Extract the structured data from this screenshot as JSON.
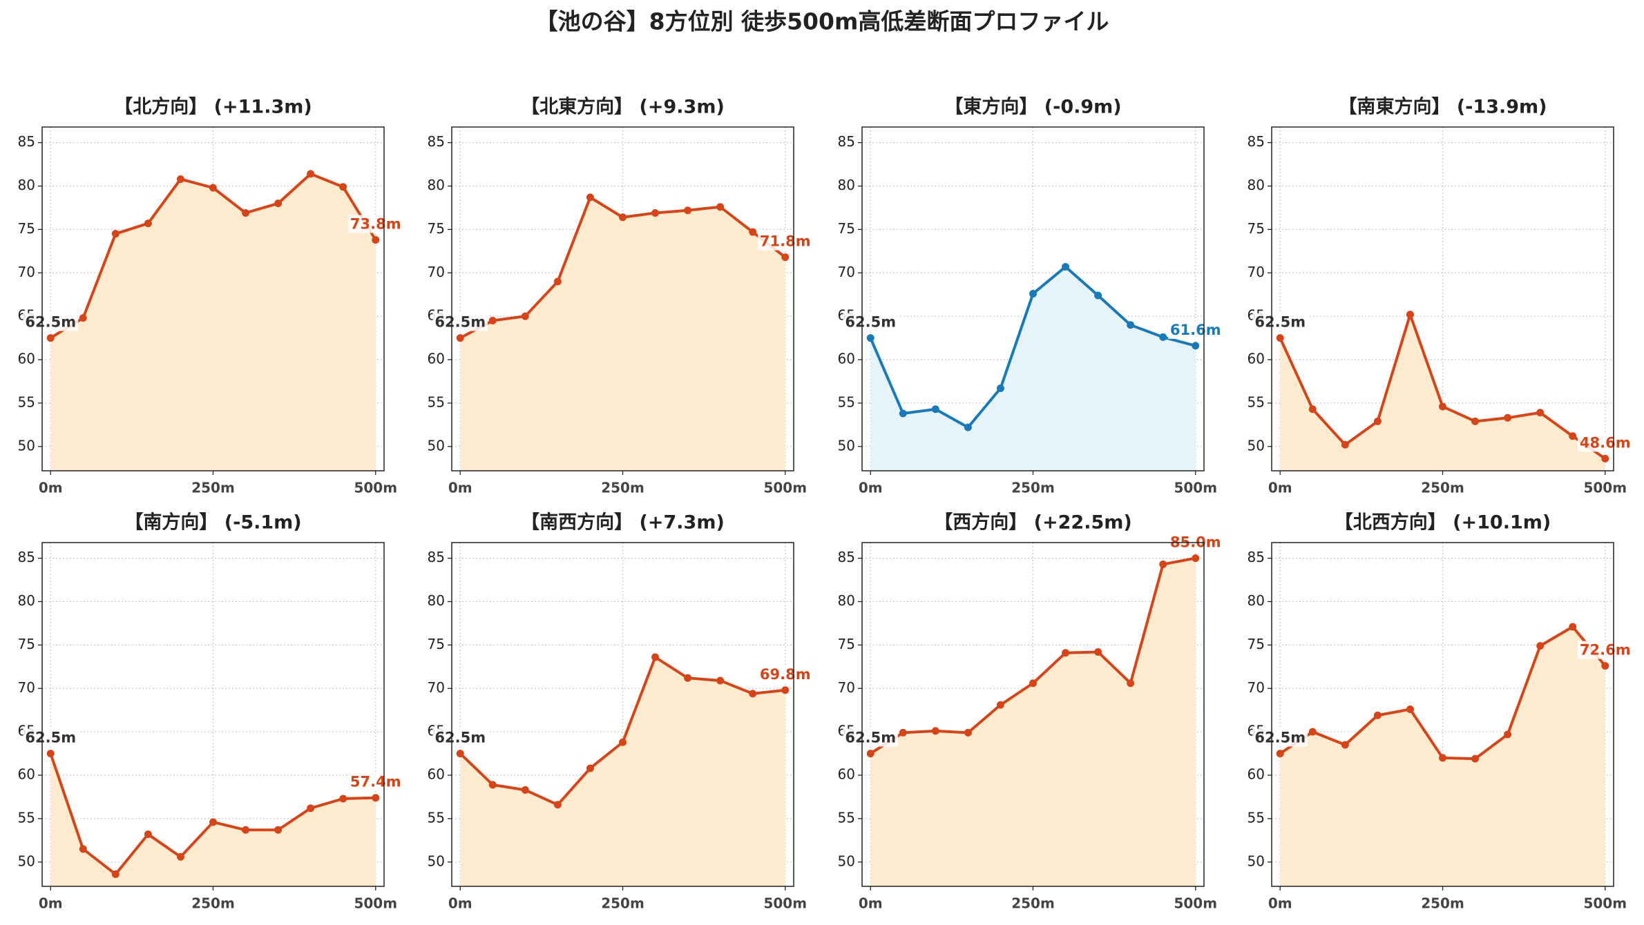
{
  "title": "【池の谷】8方位別 徒歩500m高低差断面プロファイル",
  "chart_data": [
    {
      "type": "line",
      "title": "【北方向】 (+11.3m)",
      "x": [
        0,
        50,
        100,
        150,
        200,
        250,
        300,
        350,
        400,
        450,
        500
      ],
      "values": [
        62.5,
        64.8,
        74.5,
        75.7,
        80.8,
        79.8,
        76.9,
        78.0,
        81.4,
        79.9,
        73.8
      ],
      "value_labels": [
        "62.5m",
        null,
        null,
        null,
        null,
        null,
        null,
        null,
        null,
        null,
        "73.8m"
      ],
      "color": "#d4451a",
      "fill_color": "#fdebd0",
      "xlim": [
        -13,
        513
      ],
      "xticks": [
        {
          "value": 0,
          "label": "0m"
        },
        {
          "value": 250,
          "label": "250m"
        },
        {
          "value": 500,
          "label": "500m"
        }
      ],
      "ylim": [
        47.2,
        86.8
      ],
      "yticks": [
        50,
        55,
        60,
        65,
        70,
        75,
        80,
        85
      ],
      "grid": true
    },
    {
      "type": "line",
      "title": "【北東方向】 (+9.3m)",
      "x": [
        0,
        50,
        100,
        150,
        200,
        250,
        300,
        350,
        400,
        450,
        500
      ],
      "values": [
        62.5,
        64.5,
        65.0,
        69.0,
        78.7,
        76.4,
        76.9,
        77.2,
        77.6,
        74.7,
        71.8
      ],
      "value_labels": [
        "62.5m",
        null,
        null,
        null,
        null,
        null,
        null,
        null,
        null,
        null,
        "71.8m"
      ],
      "color": "#d4451a",
      "fill_color": "#fdebd0",
      "xlim": [
        -13,
        513
      ],
      "xticks": [
        {
          "value": 0,
          "label": "0m"
        },
        {
          "value": 250,
          "label": "250m"
        },
        {
          "value": 500,
          "label": "500m"
        }
      ],
      "ylim": [
        47.2,
        86.8
      ],
      "yticks": [
        50,
        55,
        60,
        65,
        70,
        75,
        80,
        85
      ],
      "grid": true
    },
    {
      "type": "line",
      "title": "【東方向】 (-0.9m)",
      "x": [
        0,
        50,
        100,
        150,
        200,
        250,
        300,
        350,
        400,
        450,
        500
      ],
      "values": [
        62.5,
        53.8,
        54.3,
        52.2,
        56.7,
        67.6,
        70.7,
        67.4,
        64.0,
        62.6,
        61.6
      ],
      "value_labels": [
        "62.5m",
        null,
        null,
        null,
        null,
        null,
        null,
        null,
        null,
        null,
        "61.6m"
      ],
      "color": "#1a7ab8",
      "fill_color": "#e6f4fa",
      "xlim": [
        -13,
        513
      ],
      "xticks": [
        {
          "value": 0,
          "label": "0m"
        },
        {
          "value": 250,
          "label": "250m"
        },
        {
          "value": 500,
          "label": "500m"
        }
      ],
      "ylim": [
        47.2,
        86.8
      ],
      "yticks": [
        50,
        55,
        60,
        65,
        70,
        75,
        80,
        85
      ],
      "grid": true
    },
    {
      "type": "line",
      "title": "【南東方向】 (-13.9m)",
      "x": [
        0,
        50,
        100,
        150,
        200,
        250,
        300,
        350,
        400,
        450,
        500
      ],
      "values": [
        62.5,
        54.3,
        50.2,
        52.9,
        65.2,
        54.6,
        52.9,
        53.3,
        53.9,
        51.2,
        48.6
      ],
      "value_labels": [
        "62.5m",
        null,
        null,
        null,
        null,
        null,
        null,
        null,
        null,
        null,
        "48.6m"
      ],
      "color": "#d4451a",
      "fill_color": "#fdebd0",
      "xlim": [
        -13,
        513
      ],
      "xticks": [
        {
          "value": 0,
          "label": "0m"
        },
        {
          "value": 250,
          "label": "250m"
        },
        {
          "value": 500,
          "label": "500m"
        }
      ],
      "ylim": [
        47.2,
        86.8
      ],
      "yticks": [
        50,
        55,
        60,
        65,
        70,
        75,
        80,
        85
      ],
      "grid": true
    },
    {
      "type": "line",
      "title": "【南方向】 (-5.1m)",
      "x": [
        0,
        50,
        100,
        150,
        200,
        250,
        300,
        350,
        400,
        450,
        500
      ],
      "values": [
        62.5,
        51.5,
        48.6,
        53.2,
        50.6,
        54.6,
        53.7,
        53.7,
        56.2,
        57.3,
        57.4
      ],
      "value_labels": [
        "62.5m",
        null,
        null,
        null,
        null,
        null,
        null,
        null,
        null,
        null,
        "57.4m"
      ],
      "color": "#d4451a",
      "fill_color": "#fdebd0",
      "xlim": [
        -13,
        513
      ],
      "xticks": [
        {
          "value": 0,
          "label": "0m"
        },
        {
          "value": 250,
          "label": "250m"
        },
        {
          "value": 500,
          "label": "500m"
        }
      ],
      "ylim": [
        47.2,
        86.8
      ],
      "yticks": [
        50,
        55,
        60,
        65,
        70,
        75,
        80,
        85
      ],
      "grid": true
    },
    {
      "type": "line",
      "title": "【南西方向】 (+7.3m)",
      "x": [
        0,
        50,
        100,
        150,
        200,
        250,
        300,
        350,
        400,
        450,
        500
      ],
      "values": [
        62.5,
        58.9,
        58.3,
        56.6,
        60.8,
        63.8,
        73.6,
        71.2,
        70.9,
        69.4,
        69.8
      ],
      "value_labels": [
        "62.5m",
        null,
        null,
        null,
        null,
        null,
        null,
        null,
        null,
        null,
        "69.8m"
      ],
      "color": "#d4451a",
      "fill_color": "#fdebd0",
      "xlim": [
        -13,
        513
      ],
      "xticks": [
        {
          "value": 0,
          "label": "0m"
        },
        {
          "value": 250,
          "label": "250m"
        },
        {
          "value": 500,
          "label": "500m"
        }
      ],
      "ylim": [
        47.2,
        86.8
      ],
      "yticks": [
        50,
        55,
        60,
        65,
        70,
        75,
        80,
        85
      ],
      "grid": true
    },
    {
      "type": "line",
      "title": "【西方向】 (+22.5m)",
      "x": [
        0,
        50,
        100,
        150,
        200,
        250,
        300,
        350,
        400,
        450,
        500
      ],
      "values": [
        62.5,
        64.9,
        65.1,
        64.9,
        68.1,
        70.6,
        74.1,
        74.2,
        70.6,
        84.3,
        85.0
      ],
      "value_labels": [
        "62.5m",
        null,
        null,
        null,
        null,
        null,
        null,
        null,
        null,
        null,
        "85.0m"
      ],
      "color": "#d4451a",
      "fill_color": "#fdebd0",
      "xlim": [
        -13,
        513
      ],
      "xticks": [
        {
          "value": 0,
          "label": "0m"
        },
        {
          "value": 250,
          "label": "250m"
        },
        {
          "value": 500,
          "label": "500m"
        }
      ],
      "ylim": [
        47.2,
        86.8
      ],
      "yticks": [
        50,
        55,
        60,
        65,
        70,
        75,
        80,
        85
      ],
      "grid": true
    },
    {
      "type": "line",
      "title": "【北西方向】 (+10.1m)",
      "x": [
        0,
        50,
        100,
        150,
        200,
        250,
        300,
        350,
        400,
        450,
        500
      ],
      "values": [
        62.5,
        65.0,
        63.5,
        66.9,
        67.6,
        62.0,
        61.9,
        64.7,
        74.9,
        77.1,
        72.6
      ],
      "value_labels": [
        "62.5m",
        null,
        null,
        null,
        null,
        null,
        null,
        null,
        null,
        null,
        "72.6m"
      ],
      "color": "#d4451a",
      "fill_color": "#fdebd0",
      "xlim": [
        -13,
        513
      ],
      "xticks": [
        {
          "value": 0,
          "label": "0m"
        },
        {
          "value": 250,
          "label": "250m"
        },
        {
          "value": 500,
          "label": "500m"
        }
      ],
      "ylim": [
        47.2,
        86.8
      ],
      "yticks": [
        50,
        55,
        60,
        65,
        70,
        75,
        80,
        85
      ],
      "grid": true
    }
  ]
}
